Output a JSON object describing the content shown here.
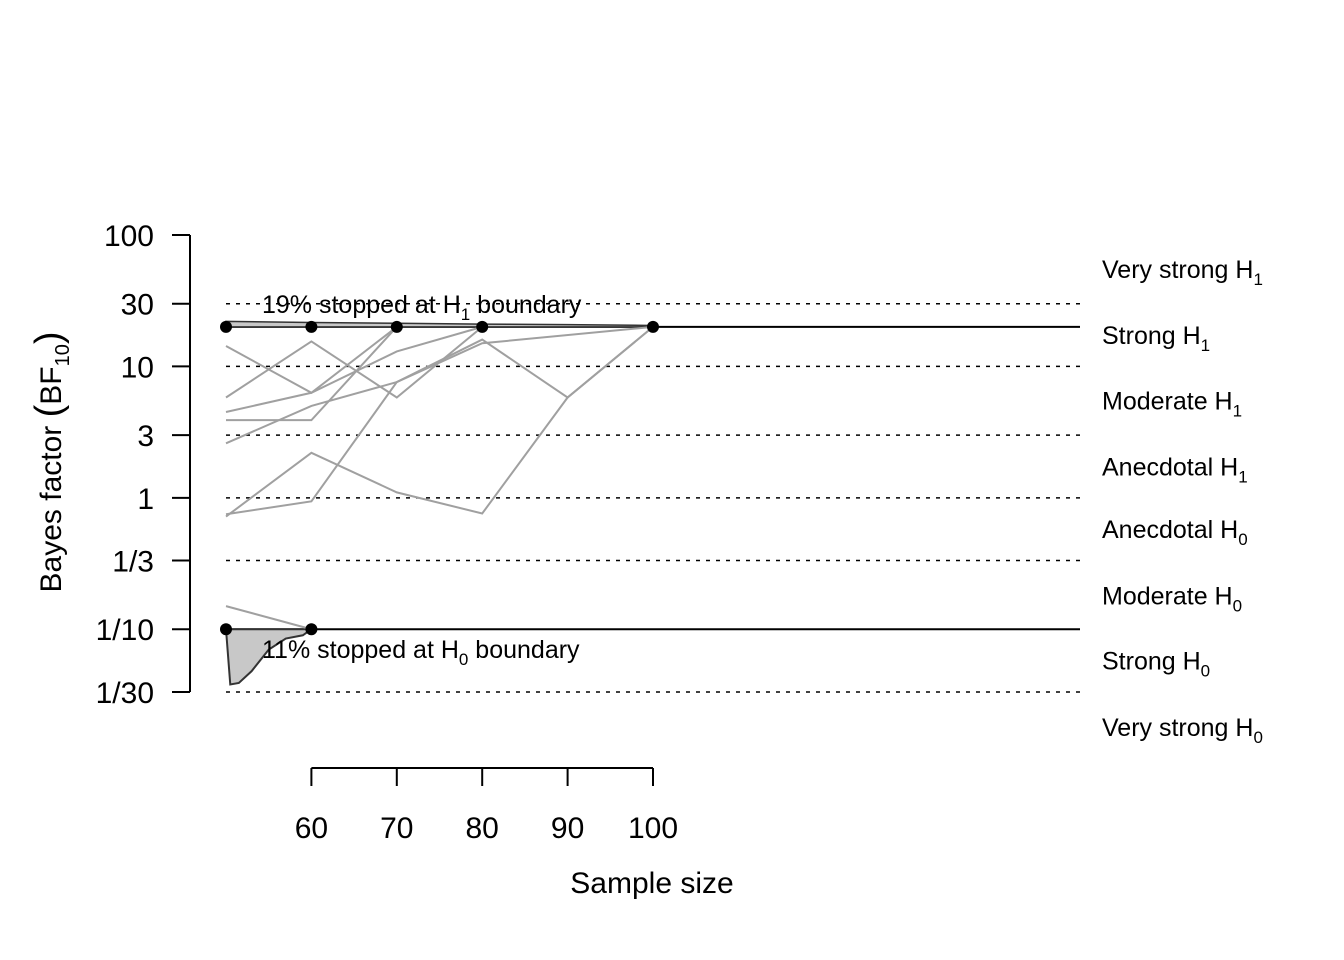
{
  "chart_data": {
    "type": "line",
    "xlabel": "Sample size",
    "ylabel_main": "Bayes factor ",
    "ylabel_symbol": "BF",
    "ylabel_sub": "10",
    "y_scale": "log",
    "ylim": [
      0.0333,
      100
    ],
    "y_ticks": [
      {
        "value": 100,
        "label": "100"
      },
      {
        "value": 30,
        "label": "30"
      },
      {
        "value": 10,
        "label": "10"
      },
      {
        "value": 3,
        "label": "3"
      },
      {
        "value": 1,
        "label": "1"
      },
      {
        "value": 0.3333,
        "label": "1/3"
      },
      {
        "value": 0.1,
        "label": "1/10"
      },
      {
        "value": 0.0333,
        "label": "1/30"
      }
    ],
    "x_ticks": [
      {
        "value": 60,
        "label": "60"
      },
      {
        "value": 70,
        "label": "70"
      },
      {
        "value": 80,
        "label": "80"
      },
      {
        "value": 90,
        "label": "90"
      },
      {
        "value": 100,
        "label": "100"
      }
    ],
    "xlim_data": [
      50,
      100
    ],
    "dashed_reference_lines": [
      30,
      10,
      3,
      1,
      0.3333,
      0.0333
    ],
    "upper_boundary": 20,
    "lower_boundary": 0.1,
    "evidence_labels": [
      {
        "text": "Very strong H",
        "sub": "1",
        "y": 55
      },
      {
        "text": "Strong H",
        "sub": "1",
        "y": 17.3
      },
      {
        "text": "Moderate H",
        "sub": "1",
        "y": 5.5
      },
      {
        "text": "Anecdotal H",
        "sub": "1",
        "y": 1.73
      },
      {
        "text": "Anecdotal H",
        "sub": "0",
        "y": 0.58
      },
      {
        "text": "Moderate H",
        "sub": "0",
        "y": 0.18
      },
      {
        "text": "Strong H",
        "sub": "0",
        "y": 0.058
      },
      {
        "text": "Very strong H",
        "sub": "0",
        "y": 0.018
      }
    ],
    "annotations": [
      {
        "pre": "19% stopped at H",
        "sub": "1",
        "post": " boundary"
      },
      {
        "pre": "11% stopped at H",
        "sub": "0",
        "post": " boundary"
      }
    ],
    "boundary_points": [
      {
        "x": 50,
        "y": 20
      },
      {
        "x": 60,
        "y": 20
      },
      {
        "x": 70,
        "y": 20
      },
      {
        "x": 80,
        "y": 20
      },
      {
        "x": 100,
        "y": 20
      },
      {
        "x": 50,
        "y": 0.1
      },
      {
        "x": 60,
        "y": 0.1
      }
    ],
    "series": [
      {
        "x": [
          50,
          60,
          70
        ],
        "y": [
          14.3,
          6.3,
          20
        ]
      },
      {
        "x": [
          50,
          60,
          70,
          80
        ],
        "y": [
          5.8,
          15.5,
          5.8,
          20
        ]
      },
      {
        "x": [
          50,
          60,
          70,
          80
        ],
        "y": [
          4.5,
          6.3,
          13.0,
          20
        ]
      },
      {
        "x": [
          50,
          60,
          70
        ],
        "y": [
          3.9,
          3.9,
          20
        ]
      },
      {
        "x": [
          50,
          60,
          70,
          80,
          100
        ],
        "y": [
          2.6,
          5.0,
          7.6,
          15.0,
          20
        ]
      },
      {
        "x": [
          50,
          60,
          70,
          80,
          90,
          100
        ],
        "y": [
          0.75,
          0.94,
          7.6,
          16.0,
          5.8,
          20
        ]
      },
      {
        "x": [
          50,
          60,
          70,
          80,
          90,
          100
        ],
        "y": [
          0.72,
          2.2,
          1.1,
          0.76,
          5.8,
          20
        ]
      },
      {
        "x": [
          50,
          60
        ],
        "y": [
          0.15,
          0.1
        ]
      }
    ],
    "upper_density": {
      "x": [
        50,
        60,
        70,
        80,
        90,
        100
      ],
      "y": [
        22,
        21.6,
        21.3,
        21.0,
        20.8,
        20.5
      ]
    },
    "lower_density": {
      "x": [
        50,
        50.5,
        51.5,
        53,
        55,
        57,
        59,
        60
      ],
      "y": [
        0.1,
        0.038,
        0.039,
        0.048,
        0.07,
        0.085,
        0.09,
        0.1
      ]
    },
    "colors": {
      "paths": "#a0a0a0",
      "density_fill": "#c8c8c8",
      "density_stroke": "#333333",
      "axis": "#000000"
    }
  }
}
